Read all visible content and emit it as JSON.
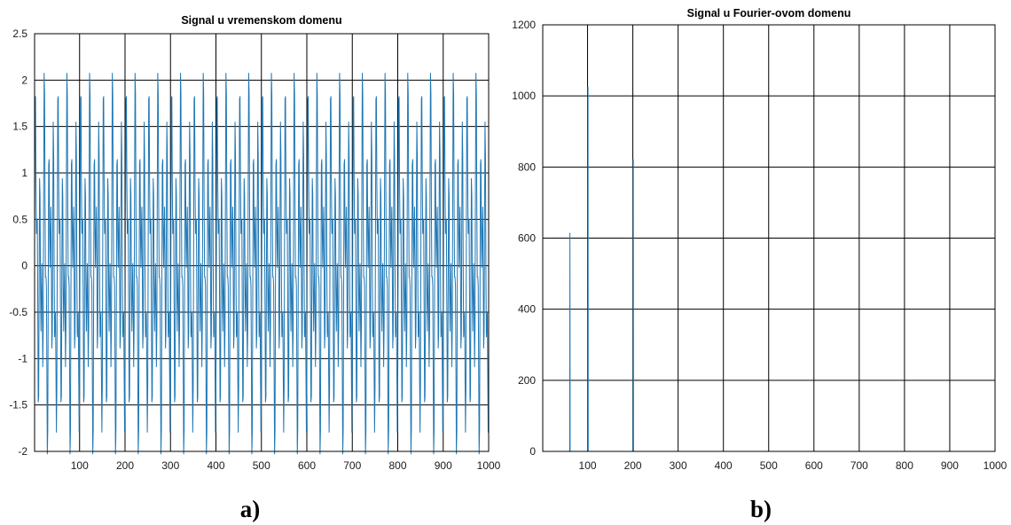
{
  "charts": {
    "a": {
      "title": "Signal u vremenskom domenu",
      "panel_label": "a)",
      "xlim": [
        1,
        1000
      ],
      "ylim": [
        -2,
        2.5
      ],
      "xticks": [
        100,
        200,
        300,
        400,
        500,
        600,
        700,
        800,
        900,
        1000
      ],
      "yticks": [
        -2,
        -1.5,
        -1,
        -0.5,
        0,
        0.5,
        1,
        1.5,
        2,
        2.5
      ],
      "yticklabels": [
        "-2",
        "-1.5",
        "-1",
        "-0.5",
        "0",
        "0.5",
        "1",
        "1.5",
        "2",
        "2.5"
      ]
    },
    "b": {
      "title": "Signal u Fourier-ovom domenu",
      "panel_label": "b)",
      "xlim": [
        1,
        1000
      ],
      "ylim": [
        0,
        1200
      ],
      "xticks": [
        100,
        200,
        300,
        400,
        500,
        600,
        700,
        800,
        900,
        1000
      ],
      "yticks": [
        0,
        200,
        400,
        600,
        800,
        1000,
        1200
      ],
      "yticklabels": [
        "0",
        "200",
        "400",
        "600",
        "800",
        "1000",
        "1200"
      ]
    }
  },
  "chart_data": [
    {
      "type": "line",
      "title": "Signal u vremenskom domenu",
      "xlim": [
        1,
        1000
      ],
      "ylim": [
        -2,
        2.5
      ],
      "grid": true,
      "series": [
        {
          "components": [
            {
              "amplitude": 0.6,
              "cycles_per_1000": 60
            },
            {
              "amplitude": 1.0,
              "cycles_per_1000": 100
            },
            {
              "amplitude": 0.8,
              "cycles_per_1000": 200
            }
          ],
          "y_range_observed": [
            -1.52,
            2.3
          ]
        }
      ]
    },
    {
      "type": "line",
      "title": "Signal u Fourier-ovom domenu",
      "xlim": [
        1,
        1000
      ],
      "ylim": [
        0,
        1200
      ],
      "grid": true,
      "series": [
        {
          "peaks": [
            {
              "x": 61,
              "y": 615
            },
            {
              "x": 101,
              "y": 1025
            },
            {
              "x": 201,
              "y": 822
            }
          ],
          "baseline": 0
        }
      ]
    }
  ]
}
